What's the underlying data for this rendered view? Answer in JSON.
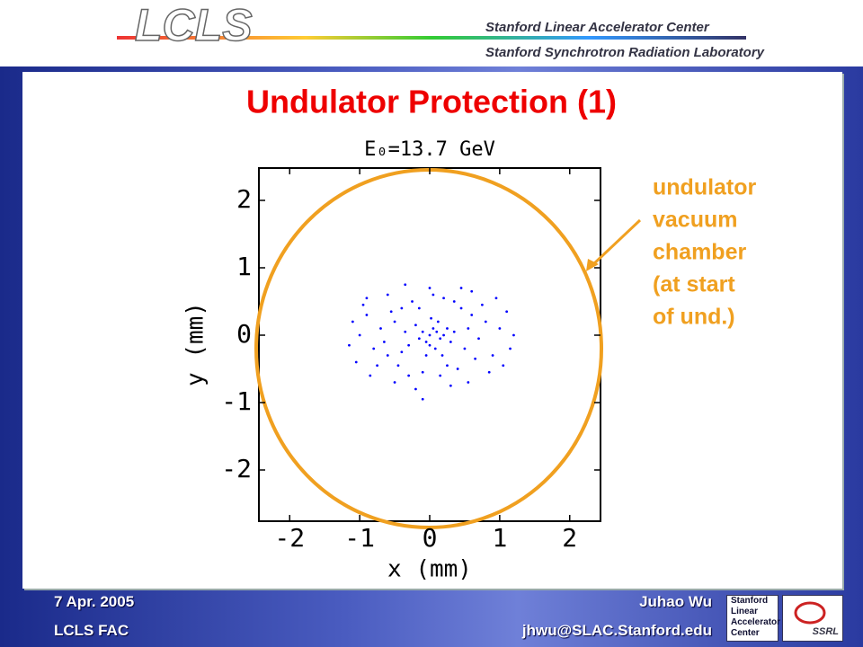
{
  "header": {
    "logo": "LCLS",
    "lines": [
      "Stanford Linear Accelerator Center",
      "Stanford Synchrotron Radiation Laboratory"
    ]
  },
  "slide_title": "Undulator Protection (1)",
  "chart_data": {
    "type": "scatter",
    "title": "E₀=13.7 GeV",
    "x_label": "x (mm)",
    "y_label": "y (mm)",
    "color": "#0000ff",
    "xlim": [
      -2.44,
      2.44
    ],
    "ylim": [
      -2.76,
      2.48
    ],
    "xticks": [
      -2,
      -1,
      0,
      1,
      2
    ],
    "yticks": [
      -2,
      -1,
      0,
      1,
      2
    ],
    "annotations": [
      "undulator",
      "vacuum",
      "chamber",
      "(at start",
      "of und.)"
    ],
    "x": [
      0.0,
      0.1,
      -0.05,
      0.15,
      0.05,
      -0.1,
      0.2,
      0.0,
      0.08,
      -0.15,
      0.25,
      -0.2,
      0.12,
      0.3,
      -0.3,
      0.02,
      -0.05,
      0.35,
      -0.35,
      0.18,
      -0.5,
      0.5,
      -0.6,
      0.6,
      -0.4,
      0.45,
      -0.45,
      0.4,
      -0.7,
      0.7,
      -0.8,
      0.8,
      -0.25,
      0.2,
      -0.1,
      0.15,
      -0.55,
      0.65,
      -0.65,
      0.55,
      -0.9,
      0.9,
      -0.3,
      0.35,
      -0.75,
      0.75,
      0.05,
      -0.15,
      0.25,
      -0.4,
      -1.0,
      1.0,
      -1.05,
      1.05,
      -0.95,
      1.1,
      -1.1,
      1.15,
      -0.6,
      0.6,
      -0.2,
      0.3,
      -0.5,
      0.55,
      0.0,
      -0.85,
      0.85,
      -1.15,
      1.2,
      -0.1,
      0.45,
      -0.35,
      0.95,
      -0.9
    ],
    "values": [
      0.0,
      0.05,
      -0.1,
      -0.05,
      0.1,
      0.05,
      0.0,
      -0.15,
      -0.2,
      -0.05,
      0.1,
      0.15,
      0.2,
      -0.1,
      -0.15,
      0.25,
      -0.3,
      0.05,
      0.05,
      -0.3,
      0.2,
      -0.2,
      -0.3,
      0.3,
      0.4,
      0.4,
      -0.45,
      -0.5,
      0.1,
      -0.05,
      -0.2,
      0.2,
      0.5,
      0.55,
      -0.55,
      -0.6,
      0.35,
      -0.35,
      -0.1,
      0.1,
      0.3,
      -0.3,
      -0.6,
      0.5,
      -0.45,
      0.45,
      0.6,
      0.4,
      -0.45,
      -0.25,
      0.0,
      0.1,
      -0.4,
      -0.45,
      0.45,
      0.35,
      0.2,
      -0.2,
      0.6,
      0.65,
      -0.8,
      -0.75,
      -0.7,
      -0.7,
      0.7,
      -0.6,
      -0.55,
      -0.15,
      0.0,
      -0.95,
      0.7,
      0.75,
      0.55,
      0.55
    ]
  },
  "footer": {
    "date": "7 Apr. 2005",
    "event": "LCLS FAC",
    "author": "Juhao Wu",
    "email": "jhwu@SLAC.Stanford.edu",
    "logo_lines": [
      "Stanford",
      "Linear",
      "Accelerator",
      "Center"
    ],
    "logo2": "SSRL"
  }
}
